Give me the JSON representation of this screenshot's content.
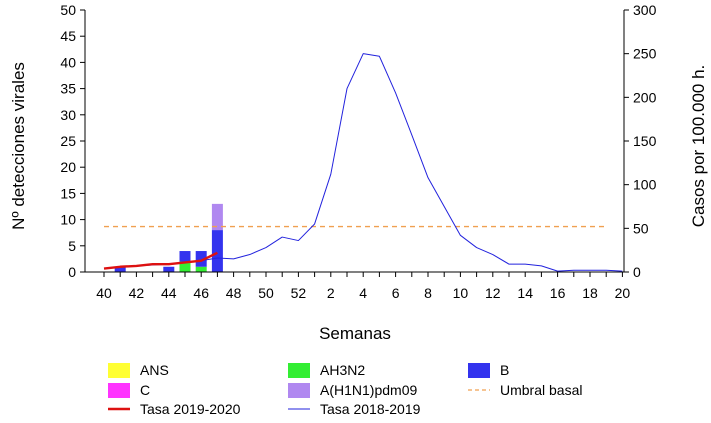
{
  "chart_data": {
    "type": "bar",
    "xlabel": "Semanas",
    "ylabel_left": "Nº detecciones virales",
    "ylabel_right": "Casos por 100.000 h.",
    "ylim_left": [
      0,
      50
    ],
    "ylim_right": [
      0,
      300
    ],
    "yticks_left": [
      0,
      5,
      10,
      15,
      20,
      25,
      30,
      35,
      40,
      45,
      50
    ],
    "yticks_right": [
      0,
      50,
      100,
      150,
      200,
      250,
      300
    ],
    "weeks": [
      40,
      41,
      42,
      43,
      44,
      45,
      46,
      47,
      48,
      49,
      50,
      51,
      52,
      1,
      2,
      3,
      4,
      5,
      6,
      7,
      8,
      9,
      10,
      11,
      12,
      13,
      14,
      15,
      16,
      17,
      18,
      19,
      20
    ],
    "xtick_labels": [
      "40",
      "42",
      "44",
      "46",
      "48",
      "50",
      "52",
      "2",
      "4",
      "6",
      "8",
      "10",
      "12",
      "14",
      "16",
      "18",
      "20"
    ],
    "bars": {
      "weeks": [
        41,
        44,
        45,
        46,
        47
      ],
      "series": [
        {
          "name": "ANS",
          "color": "#ffff33",
          "values": [
            0,
            0,
            0,
            0,
            0
          ]
        },
        {
          "name": "AH3N2",
          "color": "#33ee33",
          "values": [
            0,
            0,
            2,
            1,
            0
          ]
        },
        {
          "name": "B",
          "color": "#3333ee",
          "values": [
            1,
            1,
            2,
            3,
            8
          ]
        },
        {
          "name": "C",
          "color": "#ff33ff",
          "values": [
            0,
            0,
            0,
            0,
            0
          ]
        },
        {
          "name": "A(H1N1)pdm09",
          "color": "#b088f0",
          "values": [
            0,
            0,
            0,
            0,
            5
          ]
        }
      ]
    },
    "lines": [
      {
        "name": "Tasa 2018-2019",
        "color": "#2222dd",
        "axis": "right",
        "values": [
          4,
          6,
          7,
          8,
          9,
          11,
          13,
          16,
          15,
          20,
          28,
          40,
          36,
          55,
          112,
          210,
          250,
          247,
          205,
          157,
          108,
          75,
          42,
          28,
          20,
          9,
          9,
          7,
          1,
          2,
          2,
          2,
          1
        ]
      },
      {
        "name": "Tasa 2019-2020",
        "color": "#dd1111",
        "axis": "right",
        "values": [
          4,
          6,
          7,
          9,
          9,
          11,
          13,
          22,
          null,
          null,
          null,
          null,
          null,
          null,
          null,
          null,
          null,
          null,
          null,
          null,
          null,
          null,
          null,
          null,
          null,
          null,
          null,
          null,
          null,
          null,
          null,
          null,
          null
        ]
      }
    ],
    "threshold": {
      "name": "Umbral basal",
      "value": 52,
      "axis": "right",
      "color": "#f0a050"
    },
    "legend": [
      {
        "label": "ANS",
        "kind": "box",
        "color": "#ffff33"
      },
      {
        "label": "AH3N2",
        "kind": "box",
        "color": "#33ee33"
      },
      {
        "label": "B",
        "kind": "box",
        "color": "#3333ee"
      },
      {
        "label": "C",
        "kind": "box",
        "color": "#ff33ff"
      },
      {
        "label": "A(H1N1)pdm09",
        "kind": "box",
        "color": "#b088f0"
      },
      {
        "label": "Umbral basal",
        "kind": "dash",
        "color": "#f0a050"
      },
      {
        "label": "Tasa 2019-2020",
        "kind": "thick",
        "color": "#dd1111"
      },
      {
        "label": "Tasa 2018-2019",
        "kind": "thin",
        "color": "#2222dd"
      }
    ]
  }
}
